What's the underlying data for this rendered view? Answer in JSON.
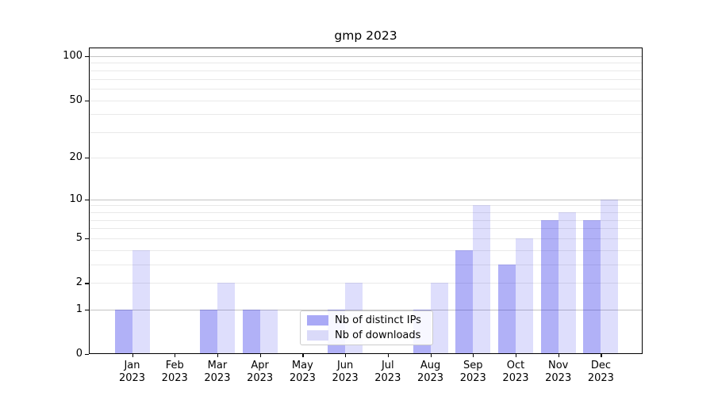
{
  "chart_data": {
    "type": "bar",
    "title": "gmp 2023",
    "categories": [
      "Jan\n2023",
      "Feb\n2023",
      "Mar\n2023",
      "Apr\n2023",
      "May\n2023",
      "Jun\n2023",
      "Jul\n2023",
      "Aug\n2023",
      "Sep\n2023",
      "Oct\n2023",
      "Nov\n2023",
      "Dec\n2023"
    ],
    "series": [
      {
        "name": "Nb of distinct IPs",
        "color": "rgba(31,31,232,0.35)",
        "legend_color": "#a9a9f6",
        "values": [
          1,
          0,
          1,
          1,
          0,
          1,
          0,
          1,
          4,
          3,
          7,
          7
        ]
      },
      {
        "name": "Nb of downloads",
        "color": "rgba(31,31,232,0.15)",
        "legend_color": "#dadaf9",
        "values": [
          4,
          0,
          2,
          1,
          0,
          2,
          0,
          2,
          9,
          5,
          8,
          10
        ]
      }
    ],
    "yaxis": {
      "scale": "log1p",
      "tick_labels": [
        0,
        1,
        2,
        5,
        10,
        20,
        50,
        100
      ],
      "major_grid": [
        1,
        10,
        100
      ],
      "minor_grid": [
        2,
        3,
        4,
        5,
        6,
        7,
        8,
        9,
        20,
        30,
        40,
        50,
        60,
        70,
        80,
        90
      ],
      "top_log_value": 2.0624,
      "ylim": [
        0,
        114
      ]
    },
    "xlabel": "",
    "ylabel": "",
    "legend_position": "lower center",
    "grid": "on",
    "colors": {
      "major_grid": "#c3c3c3",
      "minor_grid": "#e9e9e9",
      "spine": "#000000",
      "background": "#ffffff"
    }
  }
}
